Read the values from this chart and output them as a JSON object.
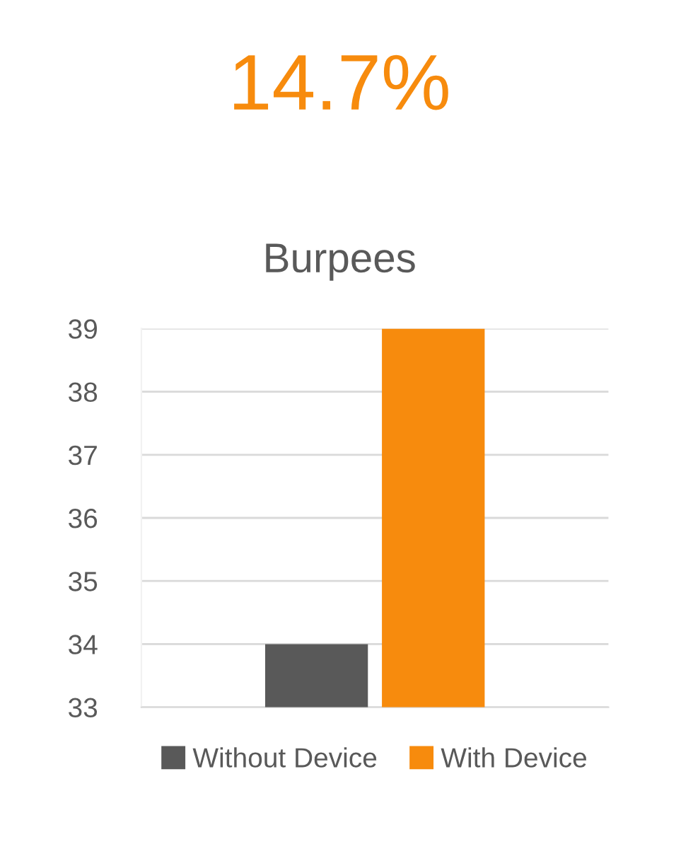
{
  "chart_data": {
    "type": "bar",
    "title": "14.7%",
    "subtitle": "Burpees",
    "categories": [
      null
    ],
    "series": [
      {
        "name": "Without Device",
        "color": "#595959",
        "values": [
          34
        ]
      },
      {
        "name": "With Device",
        "color": "#f78b0d",
        "values": [
          39
        ]
      }
    ],
    "ylim": [
      33,
      39
    ],
    "yticks": [
      33,
      34,
      35,
      36,
      37,
      38,
      39
    ],
    "grid": "y",
    "legend": "bottom"
  }
}
